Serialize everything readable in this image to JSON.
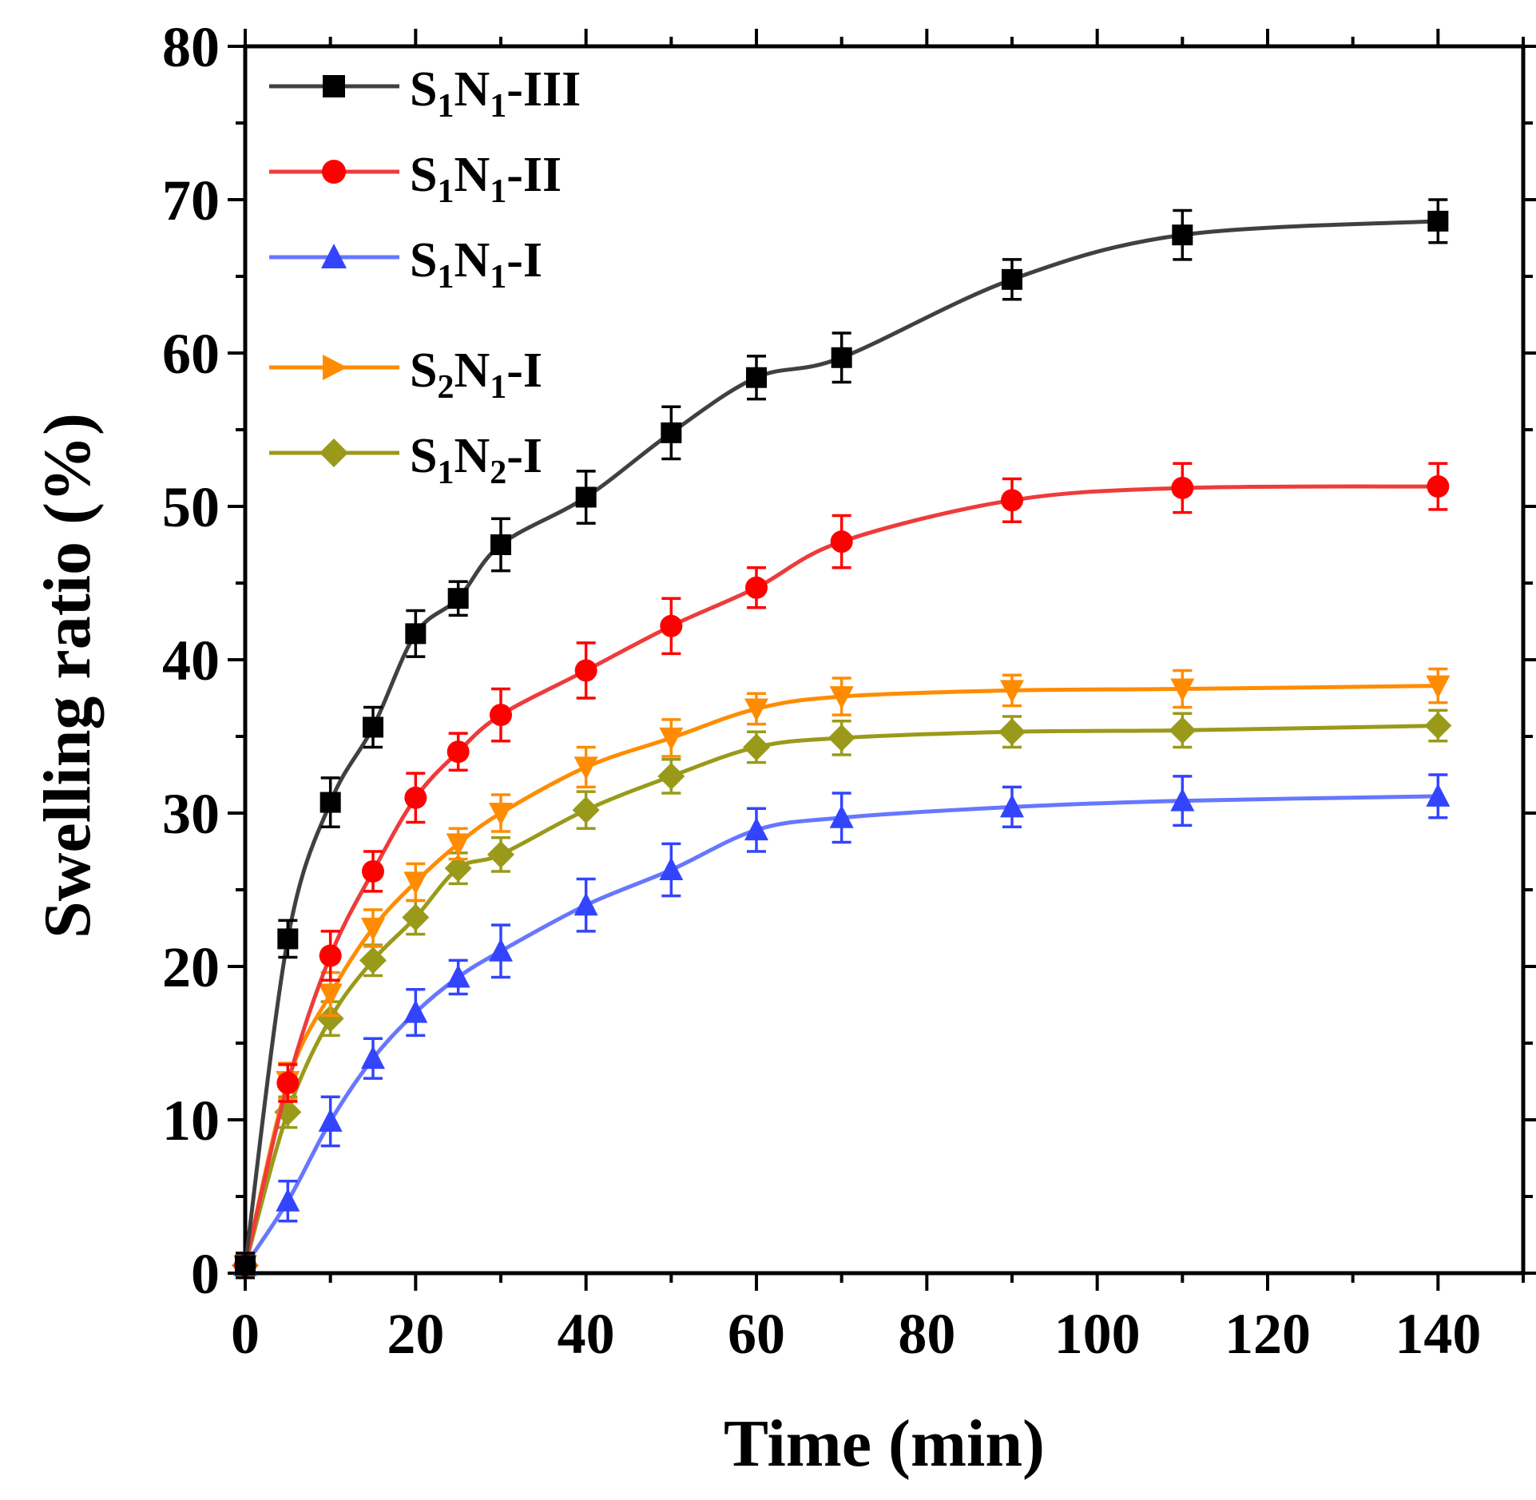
{
  "chart_data": {
    "type": "line",
    "xlabel": "Time (min)",
    "ylabel": "Swelling ratio (%)",
    "xlim": [
      0,
      150
    ],
    "ylim": [
      0,
      80
    ],
    "xticks": [
      0,
      20,
      40,
      60,
      80,
      100,
      120,
      140
    ],
    "yticks": [
      0,
      10,
      20,
      30,
      40,
      50,
      60,
      70,
      80
    ],
    "x": [
      0,
      5,
      10,
      15,
      20,
      25,
      30,
      40,
      50,
      60,
      70,
      90,
      110,
      140
    ],
    "legend_position": "top-left",
    "series": [
      {
        "name": "S1N1-III",
        "label": {
          "pre": "S",
          "s1": "1",
          "mid": "N",
          "s2": "1",
          "post": "-III"
        },
        "color": "#000000",
        "line_color": "#404040",
        "marker": "square",
        "values": [
          0.5,
          21.8,
          30.7,
          35.6,
          41.7,
          44.0,
          47.5,
          50.6,
          54.8,
          58.4,
          59.7,
          64.8,
          67.7,
          68.6
        ],
        "errors": [
          0.8,
          1.2,
          1.6,
          1.3,
          1.5,
          1.1,
          1.7,
          1.7,
          1.7,
          1.4,
          1.6,
          1.3,
          1.6,
          1.4
        ]
      },
      {
        "name": "S1N1-II",
        "label": {
          "pre": "S",
          "s1": "1",
          "mid": "N",
          "s2": "1",
          "post": "-II"
        },
        "color": "#ff0000",
        "line_color": "#ee3b3b",
        "marker": "circle",
        "values": [
          0.5,
          12.4,
          20.7,
          26.2,
          31.0,
          34.0,
          36.4,
          39.3,
          42.2,
          44.7,
          47.7,
          50.4,
          51.2,
          51.3
        ],
        "errors": [
          0.8,
          1.2,
          1.6,
          1.3,
          1.6,
          1.2,
          1.7,
          1.8,
          1.8,
          1.3,
          1.7,
          1.4,
          1.6,
          1.5
        ]
      },
      {
        "name": "S1N1-I",
        "label": {
          "pre": "S",
          "s1": "1",
          "mid": "N",
          "s2": "1",
          "post": "-I"
        },
        "color": "#3344ff",
        "line_color": "#6677ff",
        "marker": "triangle-up",
        "values": [
          0.5,
          4.7,
          9.9,
          14.0,
          17.0,
          19.3,
          21.0,
          24.0,
          26.3,
          28.9,
          29.7,
          30.4,
          30.8,
          31.1
        ],
        "errors": [
          0.8,
          1.3,
          1.6,
          1.3,
          1.5,
          1.1,
          1.7,
          1.7,
          1.7,
          1.4,
          1.6,
          1.3,
          1.6,
          1.4
        ]
      },
      {
        "name": "S2N1-I",
        "label": {
          "pre": "S",
          "s1": "2",
          "mid": "N",
          "s2": "1",
          "post": "-I"
        },
        "color": "#ff8c00",
        "line_color": "#ff8c00",
        "marker": "triangle-down",
        "values": [
          0.5,
          12.5,
          18.2,
          22.5,
          25.5,
          28.0,
          30.0,
          33.0,
          34.9,
          36.8,
          37.6,
          38.0,
          38.1,
          38.3
        ],
        "errors": [
          0.8,
          1.2,
          1.4,
          1.2,
          1.2,
          1.0,
          1.2,
          1.3,
          1.2,
          1.0,
          1.2,
          1.0,
          1.2,
          1.1
        ]
      },
      {
        "name": "S1N2-I",
        "label": {
          "pre": "S",
          "s1": "1",
          "mid": "N",
          "s2": "2",
          "post": "-I"
        },
        "color": "#9a9a1a",
        "line_color": "#9a9a1a",
        "marker": "diamond",
        "values": [
          0.5,
          10.5,
          16.6,
          20.4,
          23.2,
          26.4,
          27.3,
          30.2,
          32.4,
          34.3,
          34.9,
          35.3,
          35.4,
          35.7
        ],
        "errors": [
          0.8,
          1.0,
          1.1,
          1.0,
          1.1,
          1.0,
          1.1,
          1.2,
          1.1,
          1.0,
          1.1,
          1.0,
          1.1,
          1.0
        ]
      }
    ]
  }
}
